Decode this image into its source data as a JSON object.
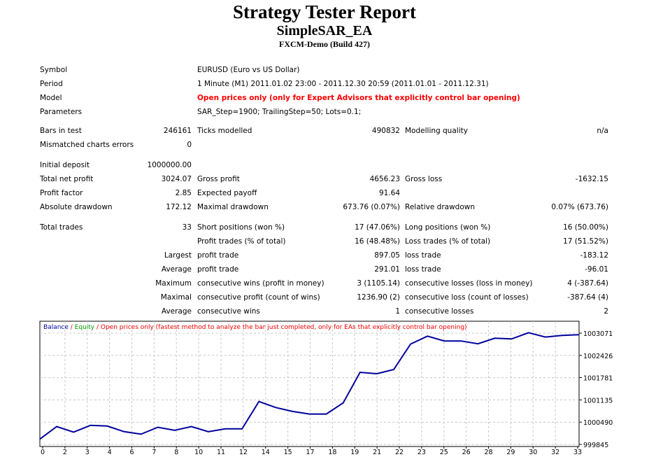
{
  "header": {
    "title": "Strategy Tester Report",
    "ea": "SimpleSAR_EA",
    "server": "FXCM-Demo (Build 427)"
  },
  "info": [
    {
      "label": "Symbol",
      "value": "EURUSD (Euro vs US Dollar)"
    },
    {
      "label": "Period",
      "value": "1 Minute (M1) 2011.01.02 23:00 - 2011.12.30 20:59 (2011.01.01 - 2011.12.31)"
    },
    {
      "label": "Model",
      "value": "Open prices only (only for Expert Advisors that explicitly control bar opening)"
    },
    {
      "label": "Parameters",
      "value": "SAR_Step=1900; TrailingStep=50; Lots=0.1;"
    }
  ],
  "rows": [
    {
      "c": [
        [
          "Bars in test",
          "246161"
        ],
        [
          "Ticks modelled",
          "490832"
        ],
        [
          "Modelling quality",
          "n/a"
        ]
      ]
    },
    {
      "c": [
        [
          "Mismatched charts errors",
          "0"
        ]
      ]
    },
    {
      "c": [
        [
          "Initial deposit",
          "1000000.00"
        ]
      ]
    },
    {
      "c": [
        [
          "Total net profit",
          "3024.07"
        ],
        [
          "Gross profit",
          "4656.23"
        ],
        [
          "Gross loss",
          "-1632.15"
        ]
      ]
    },
    {
      "c": [
        [
          "Profit factor",
          "2.85"
        ],
        [
          "Expected payoff",
          "91.64"
        ]
      ]
    },
    {
      "c": [
        [
          "Absolute drawdown",
          "172.12"
        ],
        [
          "Maximal drawdown",
          "673.76 (0.07%)"
        ],
        [
          "Relative drawdown",
          "0.07% (673.76)"
        ]
      ]
    },
    {
      "c": [
        [
          "Total trades",
          "33"
        ],
        [
          "Short positions (won %)",
          "17 (47.06%)"
        ],
        [
          "Long positions (won %)",
          "16 (50.00%)"
        ]
      ]
    },
    {
      "c": [
        [
          "",
          ""
        ],
        [
          "Profit trades (% of total)",
          "16 (48.48%)"
        ],
        [
          "Loss trades (% of total)",
          "17 (51.52%)"
        ]
      ]
    },
    {
      "c": [
        [
          "",
          "Largest"
        ],
        [
          "profit trade",
          "897.05"
        ],
        [
          "loss trade",
          "-183.12"
        ]
      ]
    },
    {
      "c": [
        [
          "",
          "Average"
        ],
        [
          "profit trade",
          "291.01"
        ],
        [
          "loss trade",
          "-96.01"
        ]
      ]
    },
    {
      "c": [
        [
          "",
          "Maximum"
        ],
        [
          "consecutive wins (profit in money)",
          "3 (1105.14)"
        ],
        [
          "consecutive losses (loss in money)",
          "4 (-387.64)"
        ]
      ]
    },
    {
      "c": [
        [
          "",
          "Maximal"
        ],
        [
          "consecutive profit (count of wins)",
          "1236.90 (2)"
        ],
        [
          "consecutive loss (count of losses)",
          "-387.64 (4)"
        ]
      ]
    },
    {
      "c": [
        [
          "",
          "Average"
        ],
        [
          "consecutive wins",
          "1"
        ],
        [
          "consecutive losses",
          "2"
        ]
      ]
    }
  ],
  "chart_data": {
    "type": "line",
    "legend": {
      "balance": "Balance",
      "sep1": " / ",
      "equity": "Equity",
      "sep2": " / ",
      "note": "Open prices only (fastest method to analyze the bar just completed, only for EAs that explicitly control bar opening)"
    },
    "colors": {
      "balance": "#00009c",
      "equity": "#00a000",
      "note": "#f00000"
    },
    "xlabels": [
      "0",
      "2",
      "3",
      "4",
      "6",
      "7",
      "8",
      "10",
      "11",
      "12",
      "14",
      "15",
      "17",
      "18",
      "19",
      "21",
      "22",
      "23",
      "25",
      "26",
      "28",
      "29",
      "30",
      "32",
      "33"
    ],
    "xlim": [
      0,
      33
    ],
    "yticks": [
      "1003071",
      "1002426",
      "1001781",
      "1001135",
      "1000490",
      "999845"
    ],
    "ylim": [
      999845,
      1003071
    ],
    "series": [
      {
        "name": "Balance",
        "values": [
          1000000,
          1000363,
          1000202,
          1000396,
          1000376,
          1000215,
          1000141,
          1000343,
          1000255,
          1000363,
          1000215,
          1000296,
          1000296,
          1001089,
          1000914,
          1000800,
          1000726,
          1000726,
          1001048,
          1001935,
          1001895,
          1002016,
          1002755,
          1002984,
          1002843,
          1002843,
          1002762,
          1002923,
          1002903,
          1003084,
          1002957,
          1003004,
          1003024
        ]
      }
    ]
  }
}
